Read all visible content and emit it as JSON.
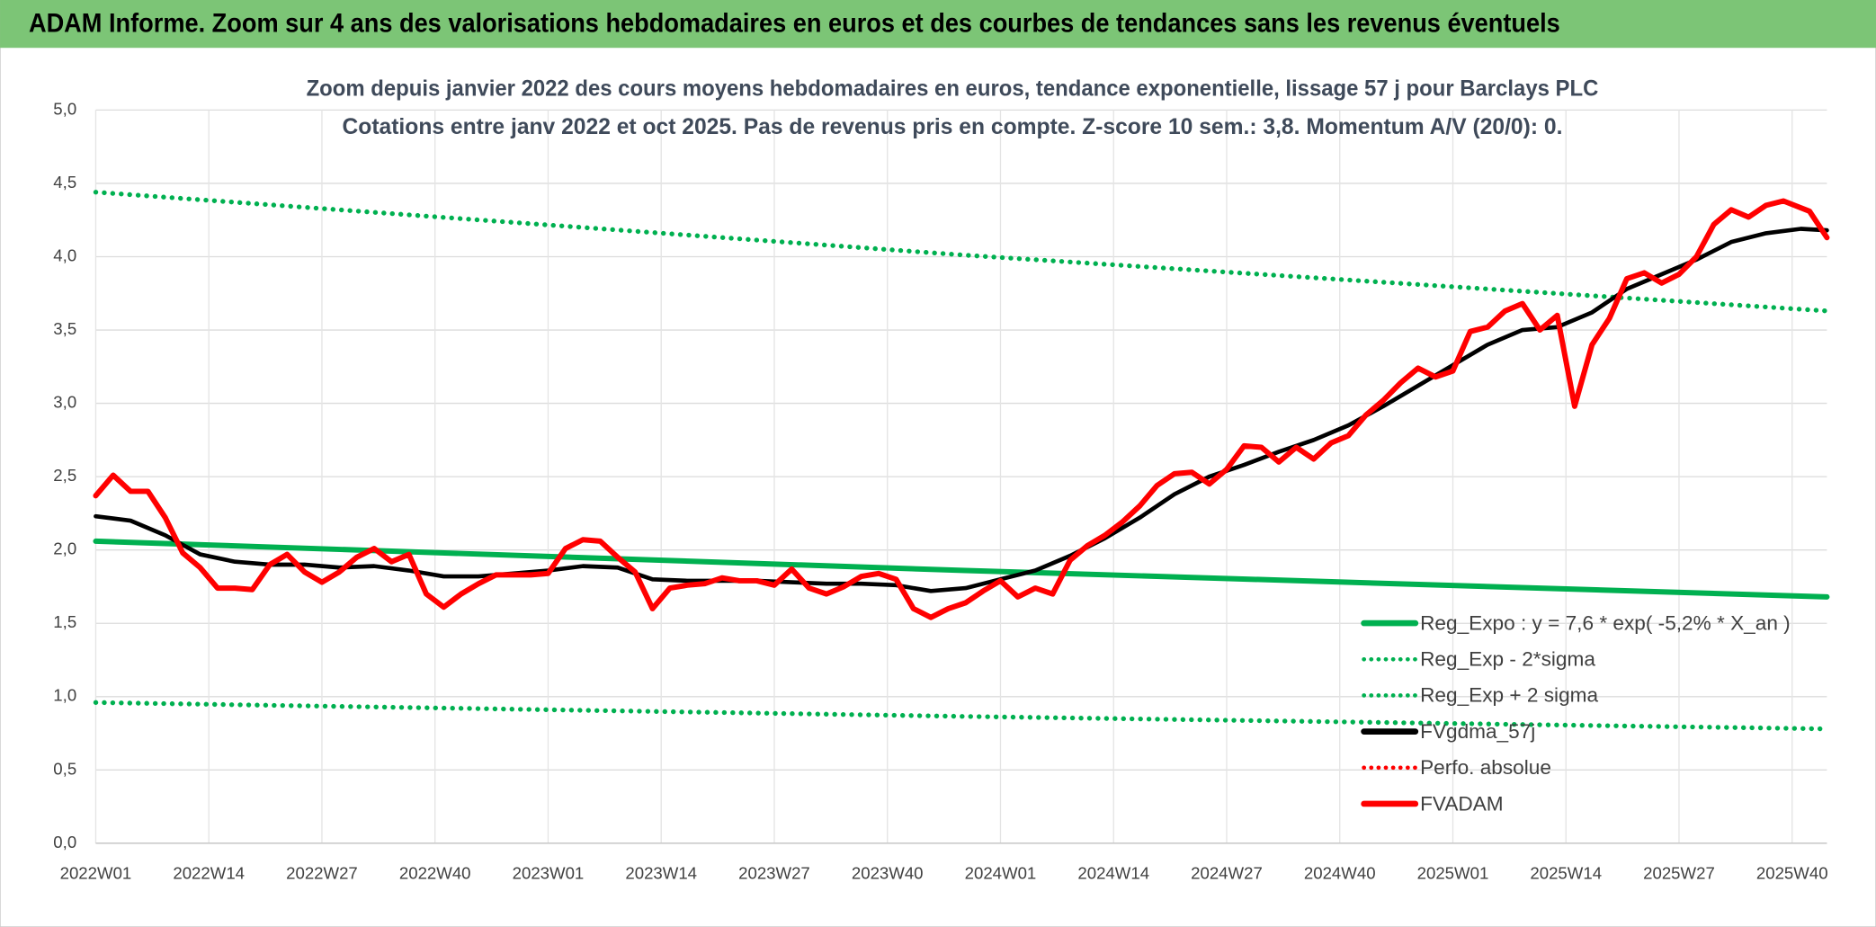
{
  "header": {
    "title": "ADAM Informe. Zoom sur 4 ans des valorisations hebdomadaires en euros et des courbes de tendances sans les revenus éventuels"
  },
  "chart_data": {
    "type": "line",
    "title": "Zoom depuis janvier 2022 des cours moyens hebdomadaires en euros, tendance exponentielle, lissage 57 j pour Barclays PLC",
    "subtitle": "Cotations entre janv 2022 et oct 2025. Pas de revenus pris en compte. Z-score 10 sem.: 3,8. Momentum A/V (20/0): 0.",
    "xlim": [
      0,
      199
    ],
    "xticks": [
      {
        "value": 0,
        "label": "2022W01"
      },
      {
        "value": 13,
        "label": "2022W14"
      },
      {
        "value": 26,
        "label": "2022W27"
      },
      {
        "value": 39,
        "label": "2022W40"
      },
      {
        "value": 52,
        "label": "2023W01"
      },
      {
        "value": 65,
        "label": "2023W14"
      },
      {
        "value": 78,
        "label": "2023W27"
      },
      {
        "value": 91,
        "label": "2023W40"
      },
      {
        "value": 104,
        "label": "2024W01"
      },
      {
        "value": 117,
        "label": "2024W14"
      },
      {
        "value": 130,
        "label": "2024W27"
      },
      {
        "value": 143,
        "label": "2024W40"
      },
      {
        "value": 156,
        "label": "2025W01"
      },
      {
        "value": 169,
        "label": "2025W14"
      },
      {
        "value": 182,
        "label": "2025W27"
      },
      {
        "value": 195,
        "label": "2025W40"
      }
    ],
    "ylim": [
      0,
      5
    ],
    "yticks": [
      {
        "value": 0,
        "label": "0,0"
      },
      {
        "value": 0.5,
        "label": "0,5"
      },
      {
        "value": 1,
        "label": "1,0"
      },
      {
        "value": 1.5,
        "label": "1,5"
      },
      {
        "value": 2,
        "label": "2,0"
      },
      {
        "value": 2.5,
        "label": "2,5"
      },
      {
        "value": 3,
        "label": "3,0"
      },
      {
        "value": 3.5,
        "label": "3,5"
      },
      {
        "value": 4,
        "label": "4,0"
      },
      {
        "value": 4.5,
        "label": "4,5"
      },
      {
        "value": 5,
        "label": "5,0"
      }
    ],
    "grid": true,
    "legend": "lower right",
    "series": [
      {
        "name": "Reg_Expo : y = 7,6 * exp( -5,2% *  X_an )",
        "color": "#00b050",
        "style": "solid",
        "x": [
          0,
          100,
          199
        ],
        "values": [
          2.06,
          1.86,
          1.68
        ]
      },
      {
        "name": "Reg_Exp - 2*sigma",
        "color": "#00b050",
        "style": "dotted",
        "x": [
          0,
          100,
          199
        ],
        "values": [
          0.96,
          0.865,
          0.78
        ]
      },
      {
        "name": "Reg_Exp + 2 sigma",
        "color": "#00b050",
        "style": "dotted",
        "x": [
          0,
          100,
          199
        ],
        "values": [
          4.44,
          4.01,
          3.63
        ]
      },
      {
        "name": "FVgdma_57j",
        "color": "#000000",
        "style": "solid",
        "x": [
          0,
          4,
          8,
          12,
          16,
          20,
          24,
          28,
          32,
          36,
          40,
          44,
          48,
          52,
          56,
          60,
          64,
          68,
          72,
          76,
          80,
          84,
          88,
          92,
          96,
          100,
          104,
          108,
          112,
          116,
          120,
          124,
          128,
          132,
          136,
          140,
          144,
          148,
          152,
          156,
          160,
          164,
          168,
          172,
          176,
          180,
          184,
          188,
          192,
          196,
          199
        ],
        "values": [
          2.23,
          2.2,
          2.1,
          1.97,
          1.92,
          1.9,
          1.9,
          1.88,
          1.89,
          1.86,
          1.82,
          1.82,
          1.84,
          1.86,
          1.89,
          1.88,
          1.8,
          1.79,
          1.79,
          1.79,
          1.78,
          1.77,
          1.77,
          1.76,
          1.72,
          1.74,
          1.8,
          1.86,
          1.96,
          2.08,
          2.22,
          2.38,
          2.5,
          2.58,
          2.67,
          2.75,
          2.85,
          2.98,
          3.12,
          3.26,
          3.4,
          3.5,
          3.52,
          3.62,
          3.78,
          3.88,
          3.98,
          4.1,
          4.16,
          4.19,
          4.18
        ]
      },
      {
        "name": "Perfo. absolue",
        "color": "#ff0000",
        "style": "dotted",
        "x": [],
        "values": []
      },
      {
        "name": "FVADAM",
        "color": "#ff0000",
        "style": "solid",
        "x": [
          0,
          2,
          4,
          6,
          8,
          10,
          12,
          14,
          16,
          18,
          20,
          22,
          24,
          26,
          28,
          30,
          32,
          34,
          36,
          38,
          40,
          42,
          44,
          46,
          48,
          50,
          52,
          54,
          56,
          58,
          60,
          62,
          64,
          66,
          68,
          70,
          72,
          74,
          76,
          78,
          80,
          82,
          84,
          86,
          88,
          90,
          92,
          94,
          96,
          98,
          100,
          102,
          104,
          106,
          108,
          110,
          112,
          114,
          116,
          118,
          120,
          122,
          124,
          126,
          128,
          130,
          132,
          134,
          136,
          138,
          140,
          142,
          144,
          146,
          148,
          150,
          152,
          154,
          156,
          158,
          160,
          162,
          164,
          166,
          168,
          170,
          172,
          174,
          176,
          178,
          180,
          182,
          184,
          186,
          188,
          190,
          192,
          194,
          197,
          199
        ],
        "values": [
          2.37,
          2.51,
          2.4,
          2.4,
          2.22,
          1.98,
          1.88,
          1.74,
          1.74,
          1.73,
          1.9,
          1.97,
          1.85,
          1.78,
          1.85,
          1.95,
          2.01,
          1.92,
          1.97,
          1.7,
          1.61,
          1.7,
          1.77,
          1.83,
          1.83,
          1.83,
          1.84,
          2.01,
          2.07,
          2.06,
          1.95,
          1.85,
          1.6,
          1.74,
          1.76,
          1.77,
          1.81,
          1.79,
          1.79,
          1.76,
          1.87,
          1.74,
          1.7,
          1.75,
          1.82,
          1.84,
          1.8,
          1.6,
          1.54,
          1.6,
          1.64,
          1.72,
          1.79,
          1.68,
          1.74,
          1.7,
          1.93,
          2.03,
          2.1,
          2.19,
          2.3,
          2.44,
          2.52,
          2.53,
          2.45,
          2.55,
          2.71,
          2.7,
          2.6,
          2.7,
          2.62,
          2.73,
          2.78,
          2.92,
          3.02,
          3.14,
          3.24,
          3.18,
          3.22,
          3.49,
          3.52,
          3.63,
          3.68,
          3.5,
          3.6,
          2.98,
          3.4,
          3.58,
          3.85,
          3.89,
          3.82,
          3.88,
          4.0,
          4.22,
          4.32,
          4.27,
          4.35,
          4.38,
          4.31,
          4.13
        ]
      }
    ]
  }
}
